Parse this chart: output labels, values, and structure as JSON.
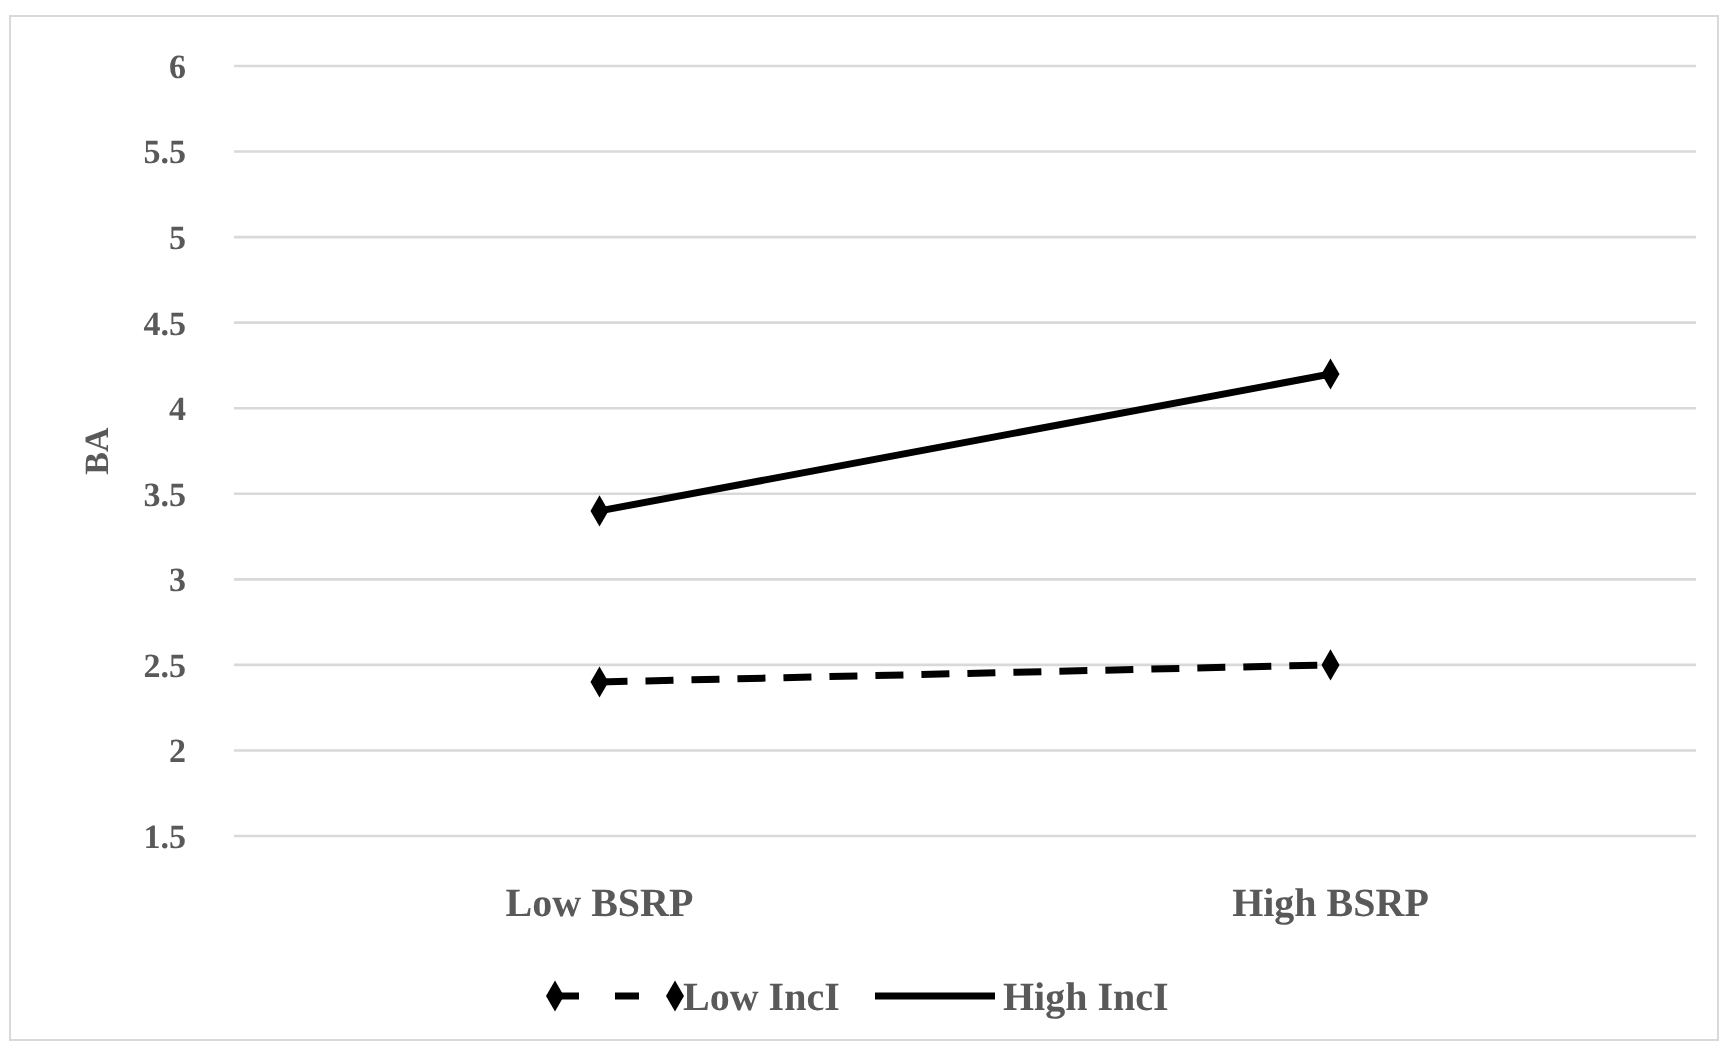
{
  "chart_data": {
    "type": "line",
    "ylabel": "BA",
    "categories": [
      "Low BSRP",
      "High BSRP"
    ],
    "series": [
      {
        "name": "Low IncI",
        "color": "#000000",
        "values": [
          2.4,
          2.5
        ],
        "line_style": "dashed"
      },
      {
        "name": "High IncI",
        "color": "#000000",
        "values": [
          3.4,
          4.2
        ],
        "line_style": "solid"
      }
    ],
    "ylim": [
      1.5,
      6
    ],
    "yticks": [
      1.5,
      2,
      2.5,
      3,
      3.5,
      4,
      4.5,
      5,
      5.5,
      6
    ],
    "grid": "y",
    "legend": "bottom",
    "marker": "diamond"
  }
}
